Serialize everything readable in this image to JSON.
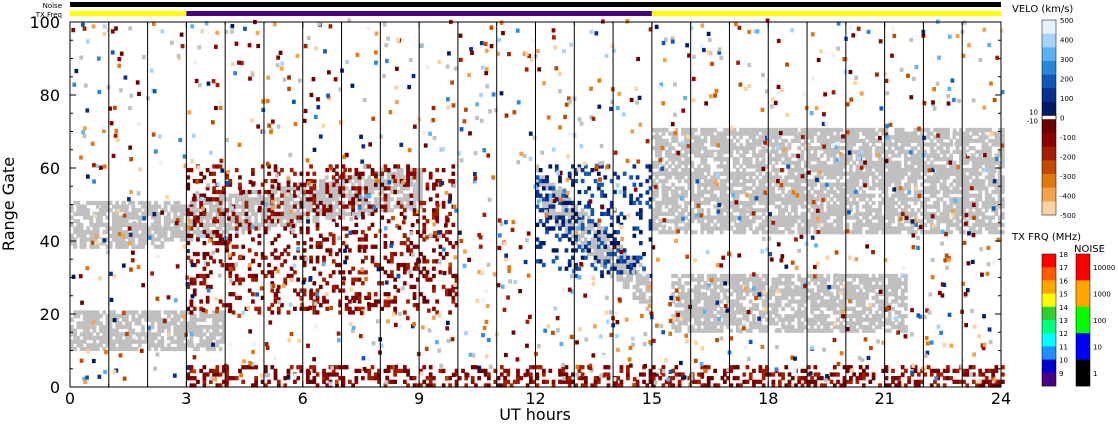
{
  "top_bars": {
    "noise_label": "Noise",
    "txfreq_label": "TX Freq",
    "noise_color": "#000000",
    "tx_segments": [
      {
        "from": 0,
        "to": 3,
        "color": "#ffff00"
      },
      {
        "from": 3,
        "to": 15,
        "color": "#4b0082"
      },
      {
        "from": 15,
        "to": 24,
        "color": "#ffff00"
      }
    ]
  },
  "chart_data": {
    "type": "heatmap",
    "xlabel": "UT hours",
    "ylabel": "Range Gate",
    "xlim": [
      0,
      24
    ],
    "ylim": [
      0,
      100
    ],
    "x_ticks": [
      "0",
      "3",
      "6",
      "9",
      "12",
      "15",
      "18",
      "21",
      "24"
    ],
    "y_ticks": [
      "0",
      "20",
      "40",
      "60",
      "80",
      "100"
    ],
    "vertical_lines_every_hour": true,
    "ground_scatter_color": "#c0c0c0",
    "velocity_scale": {
      "title": "VELO (km/s)",
      "labels_top": [
        "500",
        "400",
        "300",
        "200",
        "100",
        "0"
      ],
      "labels_bottom": [
        "-100",
        "-200",
        "-300",
        "-400",
        "-500"
      ],
      "labels_mid": [
        "10",
        "-10"
      ],
      "colors_positive": [
        "#e6f2ff",
        "#a6d4ff",
        "#5bb2f2",
        "#2a86d8",
        "#0f58b8",
        "#08308f",
        "#001a66"
      ],
      "colors_negative": [
        "#6b0000",
        "#8b0000",
        "#a11f00",
        "#c24a00",
        "#e07a10",
        "#f2a24a",
        "#fcd2a0"
      ]
    },
    "txfreq_scale": {
      "title": "TX FRQ (MHz)",
      "labels": [
        "18",
        "17",
        "16",
        "15",
        "14",
        "13",
        "12",
        "11",
        "10",
        "9"
      ],
      "colors": [
        "#ff0000",
        "#ff5a00",
        "#ffa500",
        "#ffff00",
        "#32cd32",
        "#00ff7f",
        "#00ffff",
        "#1e90ff",
        "#0000cd",
        "#4b0082"
      ]
    },
    "noise_scale": {
      "title": "NOISE",
      "labels": [
        "10000",
        "1000",
        "100",
        "10",
        "1"
      ],
      "colors": [
        "#ff0000",
        "#ffa500",
        "#00ff00",
        "#0000ff",
        "#000000"
      ]
    },
    "features": {
      "ground_scatter": [
        {
          "x": [
            0.0,
            4.0
          ],
          "y": [
            10,
            20
          ],
          "trend": "flat"
        },
        {
          "x": [
            0.0,
            2.5
          ],
          "y": [
            38,
            50
          ],
          "trend": "flat"
        },
        {
          "x": [
            2.5,
            9.0
          ],
          "y": [
            40,
            60
          ],
          "trend": "rising"
        },
        {
          "x": [
            12.0,
            15.0
          ],
          "y": [
            20,
            60
          ],
          "trend": "falling"
        },
        {
          "x": [
            15.0,
            24.0
          ],
          "y": [
            42,
            70
          ],
          "trend": "flat"
        },
        {
          "x": [
            15.5,
            21.5
          ],
          "y": [
            15,
            30
          ],
          "trend": "flat"
        }
      ],
      "ionospheric_scatter": [
        {
          "x": [
            3.0,
            10.0
          ],
          "y": [
            20,
            60
          ],
          "velocity": "negative"
        },
        {
          "x": [
            12.0,
            15.0
          ],
          "y": [
            30,
            60
          ],
          "velocity": "positive"
        },
        {
          "x": [
            3.0,
            24.0
          ],
          "y": [
            0,
            5
          ],
          "velocity": "negative"
        }
      ]
    }
  }
}
